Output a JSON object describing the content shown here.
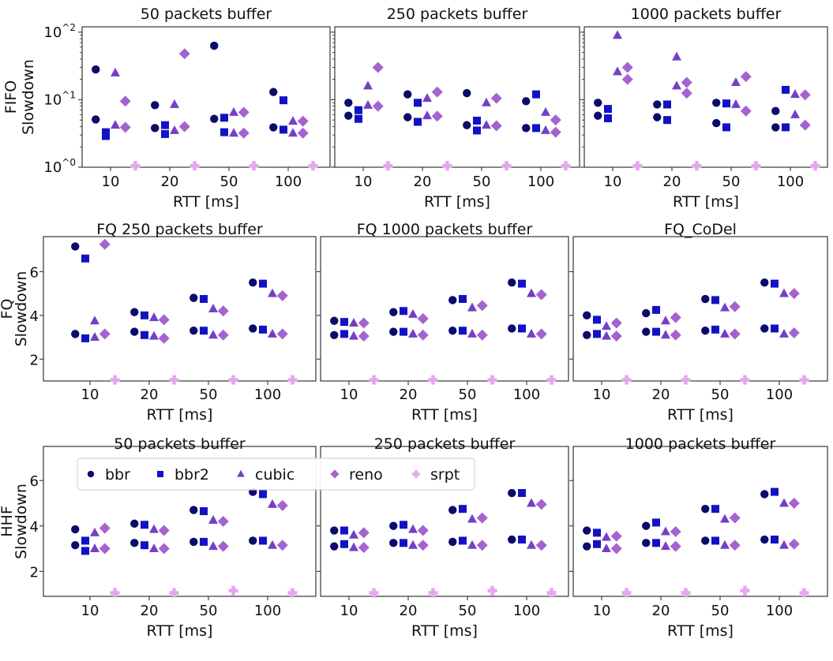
{
  "chart_data": {
    "type": "scatter",
    "x_categories": [
      "10",
      "20",
      "50",
      "100"
    ],
    "xlabel": "RTT [ms]",
    "legend": {
      "placement": "top-left of bottom row",
      "entries": [
        {
          "name": "bbr",
          "marker": "circle",
          "color": "#0b0b6b"
        },
        {
          "name": "bbr2",
          "marker": "square",
          "color": "#1212c4"
        },
        {
          "name": "cubic",
          "marker": "triangle",
          "color": "#7440c6"
        },
        {
          "name": "reno",
          "marker": "diamond",
          "color": "#a563cf"
        },
        {
          "name": "srpt",
          "marker": "plus",
          "color": "#e4a6ee"
        }
      ]
    },
    "rows": [
      {
        "row_label": "FIFO",
        "ylabel": "Slowdown",
        "yscale": "log",
        "ylim": [
          1,
          120
        ],
        "yticks": [
          1,
          10,
          100
        ],
        "ytick_labels": [
          "10^0",
          "10^1",
          "10^2"
        ]
      },
      {
        "row_label": "FQ",
        "ylabel": "Slowdown",
        "yscale": "linear",
        "ylim": [
          1.0,
          7.6
        ],
        "yticks": [
          2,
          4,
          6
        ],
        "ytick_labels": [
          "2",
          "4",
          "6"
        ]
      },
      {
        "row_label": "HHF",
        "ylabel": "Slowdown",
        "yscale": "linear",
        "ylim": [
          0.9,
          7.5
        ],
        "yticks": [
          2,
          4,
          6
        ],
        "ytick_labels": [
          "2",
          "4",
          "6"
        ]
      }
    ],
    "panels": [
      {
        "row": 0,
        "title": "50 packets buffer",
        "series": {
          "bbr": [
            [
              28,
              5.1
            ],
            [
              8.3,
              3.8
            ],
            [
              63,
              5.2
            ],
            [
              13,
              3.9
            ]
          ],
          "bbr2": [
            [
              3.3,
              2.9
            ],
            [
              4.2,
              3.1
            ],
            [
              5.4,
              3.3
            ],
            [
              9.8,
              3.6
            ]
          ],
          "cubic": [
            [
              25,
              4.2
            ],
            [
              8.5,
              3.5
            ],
            [
              6.5,
              3.2
            ],
            [
              4.8,
              3.2
            ]
          ],
          "reno": [
            [
              9.5,
              3.9
            ],
            [
              48,
              4.0
            ],
            [
              6.5,
              3.2
            ],
            [
              4.8,
              3.2
            ]
          ],
          "srpt": [
            1.05,
            1.05,
            1.05,
            1.05
          ]
        }
      },
      {
        "row": 0,
        "title": "250 packets buffer",
        "series": {
          "bbr": [
            [
              9,
              5.8
            ],
            [
              12,
              5.5
            ],
            [
              12.5,
              4.2
            ],
            [
              9.5,
              3.8
            ]
          ],
          "bbr2": [
            [
              7,
              5.2
            ],
            [
              9,
              4.7
            ],
            [
              4.9,
              3.5
            ],
            [
              12,
              3.8
            ]
          ],
          "cubic": [
            [
              16,
              8.3
            ],
            [
              10.5,
              5.8
            ],
            [
              9,
              4.2
            ],
            [
              6.5,
              3.5
            ]
          ],
          "reno": [
            [
              30,
              8
            ],
            [
              13,
              5.7
            ],
            [
              10.5,
              4.1
            ],
            [
              5,
              3.3
            ]
          ],
          "srpt": [
            1.05,
            1.05,
            1.05,
            1.05
          ]
        }
      },
      {
        "row": 0,
        "title": "1000 packets buffer",
        "series": {
          "bbr": [
            [
              9,
              5.8
            ],
            [
              8.5,
              5.5
            ],
            [
              9,
              4.5
            ],
            [
              6.8,
              3.9
            ]
          ],
          "bbr2": [
            [
              7.3,
              5.3
            ],
            [
              8.5,
              5
            ],
            [
              8.8,
              3.9
            ],
            [
              14,
              3.9
            ]
          ],
          "cubic": [
            [
              90,
              26
            ],
            [
              43,
              16
            ],
            [
              18,
              8.5
            ],
            [
              12,
              6
            ]
          ],
          "reno": [
            [
              30,
              20
            ],
            [
              18,
              12.5
            ],
            [
              22,
              6.8
            ],
            [
              11.8,
              4.2
            ]
          ],
          "srpt": [
            1.05,
            1.05,
            1.05,
            1.05
          ]
        }
      },
      {
        "row": 1,
        "title": "FQ 250 packets buffer",
        "series": {
          "bbr": [
            [
              7.15,
              3.15
            ],
            [
              4.15,
              3.25
            ],
            [
              4.8,
              3.3
            ],
            [
              5.5,
              3.4
            ]
          ],
          "bbr2": [
            [
              6.6,
              2.95
            ],
            [
              4.0,
              3.1
            ],
            [
              4.75,
              3.3
            ],
            [
              5.45,
              3.35
            ]
          ],
          "cubic": [
            [
              3.75,
              3.0
            ],
            [
              3.9,
              3.05
            ],
            [
              4.3,
              3.1
            ],
            [
              5.0,
              3.15
            ]
          ],
          "reno": [
            [
              7.25,
              3.15
            ],
            [
              3.8,
              2.95
            ],
            [
              4.2,
              3.1
            ],
            [
              4.9,
              3.15
            ]
          ],
          "srpt": [
            1.05,
            1.05,
            1.05,
            1.05
          ]
        }
      },
      {
        "row": 1,
        "title": "FQ 1000 packets buffer",
        "series": {
          "bbr": [
            [
              3.75,
              3.1
            ],
            [
              4.15,
              3.25
            ],
            [
              4.7,
              3.3
            ],
            [
              5.5,
              3.4
            ]
          ],
          "bbr2": [
            [
              3.7,
              3.15
            ],
            [
              4.2,
              3.25
            ],
            [
              4.75,
              3.3
            ],
            [
              5.45,
              3.4
            ]
          ],
          "cubic": [
            [
              3.65,
              3.05
            ],
            [
              4.05,
              3.15
            ],
            [
              4.35,
              3.15
            ],
            [
              5.0,
              3.15
            ]
          ],
          "reno": [
            [
              3.65,
              3.05
            ],
            [
              3.85,
              3.1
            ],
            [
              4.45,
              3.1
            ],
            [
              4.95,
              3.15
            ]
          ],
          "srpt": [
            1.05,
            1.05,
            1.05,
            1.05
          ]
        }
      },
      {
        "row": 1,
        "title": "FQ_CoDel",
        "series": {
          "bbr": [
            [
              4.0,
              3.1
            ],
            [
              4.1,
              3.25
            ],
            [
              4.75,
              3.3
            ],
            [
              5.5,
              3.4
            ]
          ],
          "bbr2": [
            [
              3.8,
              3.15
            ],
            [
              4.25,
              3.25
            ],
            [
              4.7,
              3.35
            ],
            [
              5.45,
              3.4
            ]
          ],
          "cubic": [
            [
              3.5,
              3.05
            ],
            [
              3.75,
              3.1
            ],
            [
              4.35,
              3.15
            ],
            [
              5.0,
              3.15
            ]
          ],
          "reno": [
            [
              3.65,
              3.05
            ],
            [
              3.9,
              3.1
            ],
            [
              4.4,
              3.15
            ],
            [
              5.0,
              3.2
            ]
          ],
          "srpt": [
            1.05,
            1.05,
            1.05,
            1.05
          ]
        }
      },
      {
        "row": 2,
        "title": "50 packets buffer",
        "series": {
          "bbr": [
            [
              3.85,
              3.15
            ],
            [
              4.1,
              3.25
            ],
            [
              4.7,
              3.3
            ],
            [
              5.5,
              3.35
            ]
          ],
          "bbr2": [
            [
              3.35,
              2.9
            ],
            [
              4.05,
              3.15
            ],
            [
              4.65,
              3.3
            ],
            [
              5.4,
              3.35
            ]
          ],
          "cubic": [
            [
              3.7,
              3.0
            ],
            [
              3.85,
              3.0
            ],
            [
              4.25,
              3.1
            ],
            [
              4.95,
              3.15
            ]
          ],
          "reno": [
            [
              3.9,
              3.0
            ],
            [
              3.8,
              3.0
            ],
            [
              4.2,
              3.1
            ],
            [
              4.9,
              3.15
            ]
          ],
          "srpt": [
            1.05,
            1.05,
            1.15,
            1.05
          ]
        }
      },
      {
        "row": 2,
        "title": "250 packets buffer",
        "series": {
          "bbr": [
            [
              3.8,
              3.1
            ],
            [
              4.0,
              3.25
            ],
            [
              4.7,
              3.3
            ],
            [
              5.45,
              3.4
            ]
          ],
          "bbr2": [
            [
              3.8,
              3.2
            ],
            [
              4.05,
              3.25
            ],
            [
              4.75,
              3.35
            ],
            [
              5.45,
              3.4
            ]
          ],
          "cubic": [
            [
              3.6,
              3.05
            ],
            [
              3.85,
              3.15
            ],
            [
              4.3,
              3.15
            ],
            [
              5.0,
              3.15
            ]
          ],
          "reno": [
            [
              3.7,
              3.05
            ],
            [
              3.8,
              3.15
            ],
            [
              4.35,
              3.15
            ],
            [
              4.95,
              3.15
            ]
          ],
          "srpt": [
            1.05,
            1.05,
            1.15,
            1.05
          ]
        }
      },
      {
        "row": 2,
        "title": "1000 packets buffer",
        "series": {
          "bbr": [
            [
              3.8,
              3.1
            ],
            [
              4.0,
              3.25
            ],
            [
              4.75,
              3.35
            ],
            [
              5.4,
              3.4
            ]
          ],
          "bbr2": [
            [
              3.7,
              3.2
            ],
            [
              4.15,
              3.25
            ],
            [
              4.75,
              3.35
            ],
            [
              5.5,
              3.4
            ]
          ],
          "cubic": [
            [
              3.5,
              3.0
            ],
            [
              3.75,
              3.1
            ],
            [
              4.3,
              3.15
            ],
            [
              5.0,
              3.15
            ]
          ],
          "reno": [
            [
              3.55,
              3.0
            ],
            [
              3.75,
              3.1
            ],
            [
              4.35,
              3.15
            ],
            [
              5.0,
              3.2
            ]
          ],
          "srpt": [
            1.05,
            1.05,
            1.15,
            1.05
          ]
        }
      }
    ]
  }
}
